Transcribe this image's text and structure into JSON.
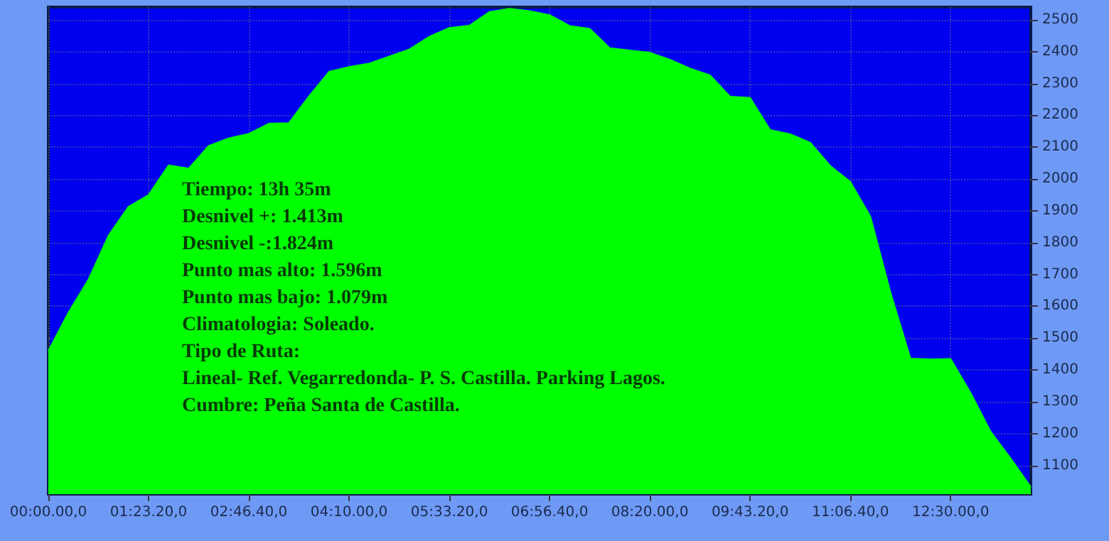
{
  "chart_data": {
    "type": "area",
    "categories": [
      "00:00.00,0",
      null,
      null,
      null,
      null,
      "01:23.20,0",
      null,
      null,
      null,
      null,
      "02:46.40,0",
      null,
      null,
      null,
      null,
      "04:10.00,0",
      null,
      null,
      null,
      null,
      "05:33.20,0",
      null,
      null,
      null,
      null,
      "06:56.40,0",
      null,
      null,
      null,
      null,
      "08:20.00,0",
      null,
      null,
      null,
      null,
      "09:43.20,0",
      null,
      null,
      null,
      null,
      "11:06.40,0",
      null,
      null,
      null,
      null,
      "12:30.00,0",
      null,
      null,
      null,
      null
    ],
    "series": [
      {
        "color": "#00ff00",
        "values": [
          1460,
          1580,
          1684,
          1822,
          1913,
          1950,
          2043,
          2033,
          2104,
          2128,
          2142,
          2174,
          2176,
          2260,
          2337,
          2352,
          2363,
          2385,
          2407,
          2447,
          2475,
          2482,
          2525,
          2535,
          2528,
          2515,
          2481,
          2472,
          2411,
          2404,
          2397,
          2375,
          2347,
          2326,
          2259,
          2255,
          2154,
          2141,
          2114,
          2041,
          1991,
          1882,
          1644,
          1436,
          1434,
          1435,
          1328,
          1206,
          1122,
          1032
        ]
      }
    ],
    "ylim": [
      1010,
      2540
    ],
    "yticks": [
      1100,
      1200,
      1300,
      1400,
      1500,
      1600,
      1700,
      1800,
      1900,
      2000,
      2100,
      2200,
      2300,
      2400,
      2500
    ],
    "grid": true,
    "marker": "none",
    "line_style": "solid",
    "annotations": [
      "Tiempo: 13h 35m",
      "Desnivel +: 1.413m",
      "Desnivel -:1.824m",
      "Punto mas alto: 1.596m",
      "Punto mas bajo: 1.079m",
      "Climatologia: Soleado.",
      "Tipo de Ruta:",
      "Lineal- Ref. Vegarredonda- P. S. Castilla. Parking Lagos.",
      "Cumbre: Peña Santa de Castilla."
    ]
  }
}
